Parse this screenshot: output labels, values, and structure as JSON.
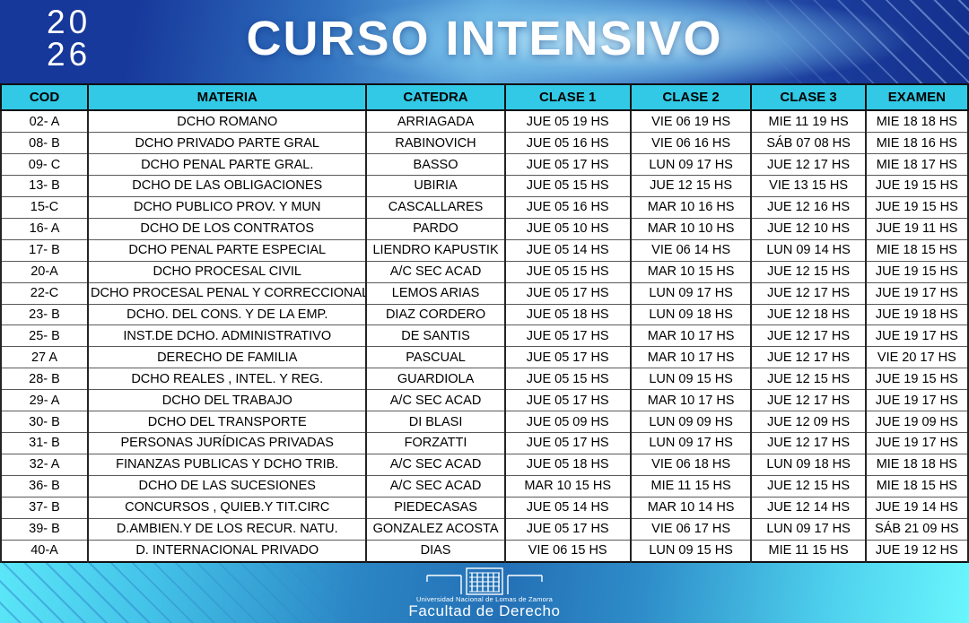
{
  "banner": {
    "year_top": "20",
    "year_bottom": "26",
    "title": "CURSO INTENSIVO"
  },
  "table": {
    "headers": [
      "COD",
      "MATERIA",
      "CATEDRA",
      "CLASE 1",
      "CLASE 2",
      "CLASE 3",
      "EXAMEN"
    ],
    "rows": [
      [
        "02- A",
        "DCHO ROMANO",
        "ARRIAGADA",
        "JUE 05 19 HS",
        "VIE 06 19 HS",
        "MIE 11 19 HS",
        "MIE 18 18 HS"
      ],
      [
        "08- B",
        "DCHO PRIVADO PARTE GRAL",
        "RABINOVICH",
        "JUE 05  16 HS",
        "VIE 06 16 HS",
        "SÁB 07 08 HS",
        "MIE 18 16 HS"
      ],
      [
        "09- C",
        "DCHO PENAL PARTE GRAL.",
        "BASSO",
        "JUE 05 17 HS",
        "LUN 09 17 HS",
        "JUE 12 17 HS",
        "MIE 18 17 HS"
      ],
      [
        "13- B",
        "DCHO DE LAS OBLIGACIONES",
        "UBIRIA",
        "JUE 05 15 HS",
        "JUE 12 15 HS",
        "VIE 13 15 HS",
        "JUE 19 15 HS"
      ],
      [
        "15-C",
        "DCHO PUBLICO PROV. Y MUN",
        "CASCALLARES",
        "JUE 05 16 HS",
        "MAR 10 16 HS",
        "JUE 12 16 HS",
        "JUE 19 15 HS"
      ],
      [
        "16- A",
        "DCHO DE LOS CONTRATOS",
        "PARDO",
        "JUE 05 10 HS",
        "MAR 10 10 HS",
        "JUE 12 10 HS",
        "JUE 19 11 HS"
      ],
      [
        "17- B",
        "DCHO PENAL PARTE ESPECIAL",
        "LIENDRO KAPUSTIK",
        "JUE 05 14 HS",
        "VIE 06 14 HS",
        "LUN 09 14 HS",
        "MIE 18 15 HS"
      ],
      [
        "20-A",
        "DCHO PROCESAL CIVIL",
        "A/C SEC ACAD",
        "JUE 05 15 HS",
        "MAR 10 15 HS",
        "JUE 12 15 HS",
        "JUE 19 15 HS"
      ],
      [
        "22-C",
        "DCHO PROCESAL PENAL Y CORRECCIONAL",
        "LEMOS ARIAS",
        "JUE 05 17 HS",
        "LUN 09 17 HS",
        "JUE 12 17 HS",
        "JUE 19 17 HS"
      ],
      [
        "23- B",
        "DCHO. DEL CONS. Y DE LA EMP.",
        "DIAZ CORDERO",
        "JUE 05 18 HS",
        "LUN 09 18 HS",
        "JUE 12 18 HS",
        "JUE 19 18 HS"
      ],
      [
        "25- B",
        "INST.DE DCHO. ADMINISTRATIVO",
        "DE SANTIS",
        "JUE 05 17 HS",
        "MAR 10 17 HS",
        "JUE 12 17 HS",
        "JUE 19 17 HS"
      ],
      [
        "27 A",
        "DERECHO DE FAMILIA",
        "PASCUAL",
        "JUE 05 17 HS",
        "MAR 10 17 HS",
        "JUE 12 17 HS",
        "VIE 20 17 HS"
      ],
      [
        "28- B",
        "DCHO REALES , INTEL. Y REG.",
        "GUARDIOLA",
        "JUE 05 15 HS",
        "LUN 09 15 HS",
        "JUE 12 15 HS",
        "JUE 19 15 HS"
      ],
      [
        "29- A",
        "DCHO DEL TRABAJO",
        "A/C SEC ACAD",
        "JUE 05 17 HS",
        "MAR 10 17 HS",
        "JUE 12 17 HS",
        "JUE 19 17 HS"
      ],
      [
        "30- B",
        "DCHO DEL TRANSPORTE",
        "DI BLASI",
        "JUE 05 09 HS",
        "LUN 09 09 HS",
        "JUE 12 09 HS",
        "JUE 19 09 HS"
      ],
      [
        "31- B",
        "PERSONAS JURÍDICAS PRIVADAS",
        "FORZATTI",
        "JUE 05 17 HS",
        "LUN 09 17 HS",
        "JUE 12 17 HS",
        "JUE 19 17 HS"
      ],
      [
        "32- A",
        "FINANZAS PUBLICAS Y DCHO TRIB.",
        "A/C SEC ACAD",
        "JUE 05 18 HS",
        "VIE 06 18 HS",
        "LUN 09 18 HS",
        "MIE 18 18 HS"
      ],
      [
        "36- B",
        "DCHO DE LAS SUCESIONES",
        "A/C SEC ACAD",
        "MAR 10 15 HS",
        "MIE 11 15 HS",
        "JUE 12 15 HS",
        "MIE 18 15 HS"
      ],
      [
        "37- B",
        "CONCURSOS , QUIEB.Y TIT.CIRC",
        "PIEDECASAS",
        "JUE 05 14 HS",
        "MAR 10 14 HS",
        "JUE 12 14 HS",
        "JUE 19 14 HS"
      ],
      [
        "39- B",
        "D.AMBIEN.Y DE LOS RECUR. NATU.",
        "GONZALEZ ACOSTA",
        "JUE 05 17 HS",
        "VIE 06 17 HS",
        "LUN 09 17 HS",
        "SÁB 21 09 HS"
      ],
      [
        "40-A",
        "D. INTERNACIONAL PRIVADO",
        "DIAS",
        "VIE 06 15 HS",
        "LUN 09 15 HS",
        "MIE 11 15 HS",
        "JUE 19 12 HS"
      ]
    ]
  },
  "footer": {
    "university": "Universidad Nacional de Lomas de Zamora",
    "faculty": "Facultad de Derecho"
  },
  "colors": {
    "header_cyan": "#31C9E5",
    "banner_navy": "#16389B",
    "banner_light": "#9ADEF6",
    "footer_blue": "#2470B6",
    "footer_cyan": "#5BE6F8"
  }
}
